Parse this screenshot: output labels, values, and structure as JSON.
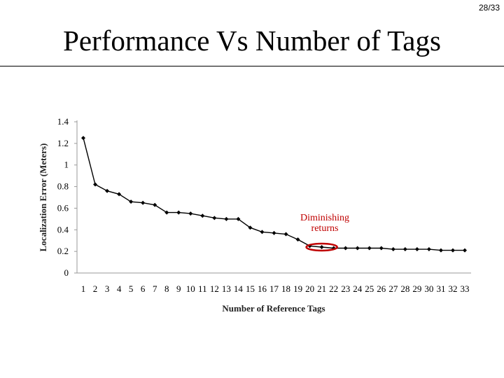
{
  "page_number": "28/33",
  "slide_title": "Performance Vs Number of Tags",
  "chart_data": {
    "type": "line",
    "xlabel": "Number of Reference Tags",
    "ylabel": "Localization Error (Meters)",
    "ylim": [
      0,
      1.4
    ],
    "yticks": [
      0,
      0.2,
      0.4,
      0.6,
      0.8,
      1,
      1.2,
      1.4
    ],
    "ytick_labels": [
      "0",
      "0.2",
      "0.4",
      "0.6",
      "0.8",
      "1",
      "1.2",
      "1.4"
    ],
    "categories": [
      "1",
      "2",
      "3",
      "4",
      "5",
      "6",
      "7",
      "8",
      "9",
      "10",
      "11",
      "12",
      "13",
      "14",
      "15",
      "16",
      "17",
      "18",
      "19",
      "20",
      "21",
      "22",
      "23",
      "24",
      "25",
      "26",
      "27",
      "28",
      "29",
      "30",
      "31",
      "32",
      "33"
    ],
    "series": [
      {
        "values": [
          1.25,
          0.82,
          0.76,
          0.73,
          0.66,
          0.65,
          0.63,
          0.56,
          0.56,
          0.55,
          0.53,
          0.51,
          0.5,
          0.5,
          0.42,
          0.38,
          0.37,
          0.36,
          0.31,
          0.25,
          0.24,
          0.23,
          0.23,
          0.23,
          0.23,
          0.23,
          0.22,
          0.22,
          0.22,
          0.22,
          0.21,
          0.21,
          0.21
        ]
      }
    ],
    "grid": false,
    "annotation": {
      "lines": [
        "Diminishing",
        "returns"
      ],
      "target_categories": [
        "20",
        "21",
        "22"
      ],
      "color": "#c00000"
    },
    "line_color": "#000000"
  }
}
